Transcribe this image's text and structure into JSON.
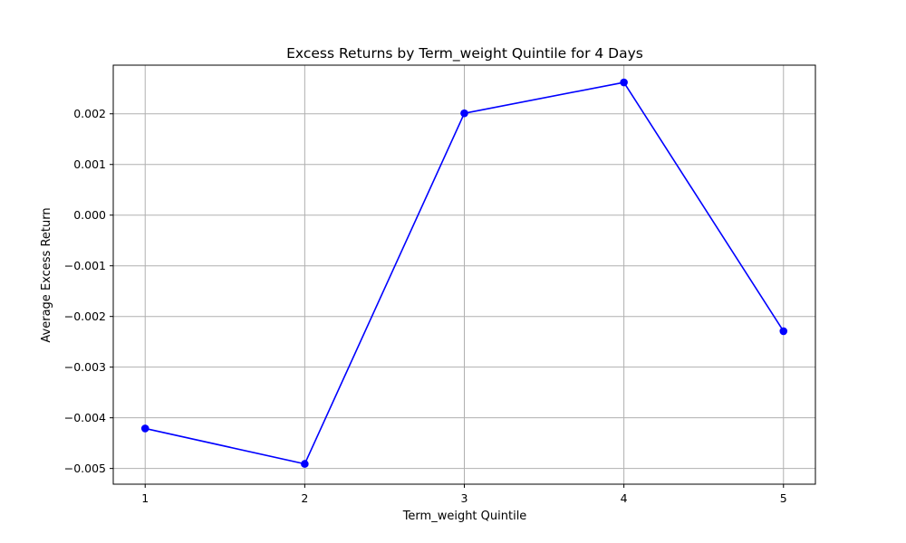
{
  "chart_data": {
    "type": "line",
    "title": "Excess Returns by Term_weight Quintile for 4 Days",
    "xlabel": "Term_weight Quintile",
    "ylabel": "Average Excess Return",
    "x": [
      1,
      2,
      3,
      4,
      5
    ],
    "series": [
      {
        "values": [
          -0.00421,
          -0.00491,
          0.00201,
          0.00262,
          -0.00229
        ],
        "color": "#0000ff",
        "marker": "circle"
      }
    ],
    "xlim": [
      0.8,
      5.2
    ],
    "ylim": [
      -0.00531,
      0.00296
    ],
    "x_ticks": [
      "1",
      "2",
      "3",
      "4",
      "5"
    ],
    "y_ticks": [
      {
        "value": 0.002,
        "label": "0.002"
      },
      {
        "value": 0.001,
        "label": "0.001"
      },
      {
        "value": 0.0,
        "label": "0.000"
      },
      {
        "value": -0.001,
        "label": "−0.001"
      },
      {
        "value": -0.002,
        "label": "−0.002"
      },
      {
        "value": -0.003,
        "label": "−0.003"
      },
      {
        "value": -0.004,
        "label": "−0.004"
      },
      {
        "value": -0.005,
        "label": "−0.005"
      }
    ],
    "grid": true
  }
}
